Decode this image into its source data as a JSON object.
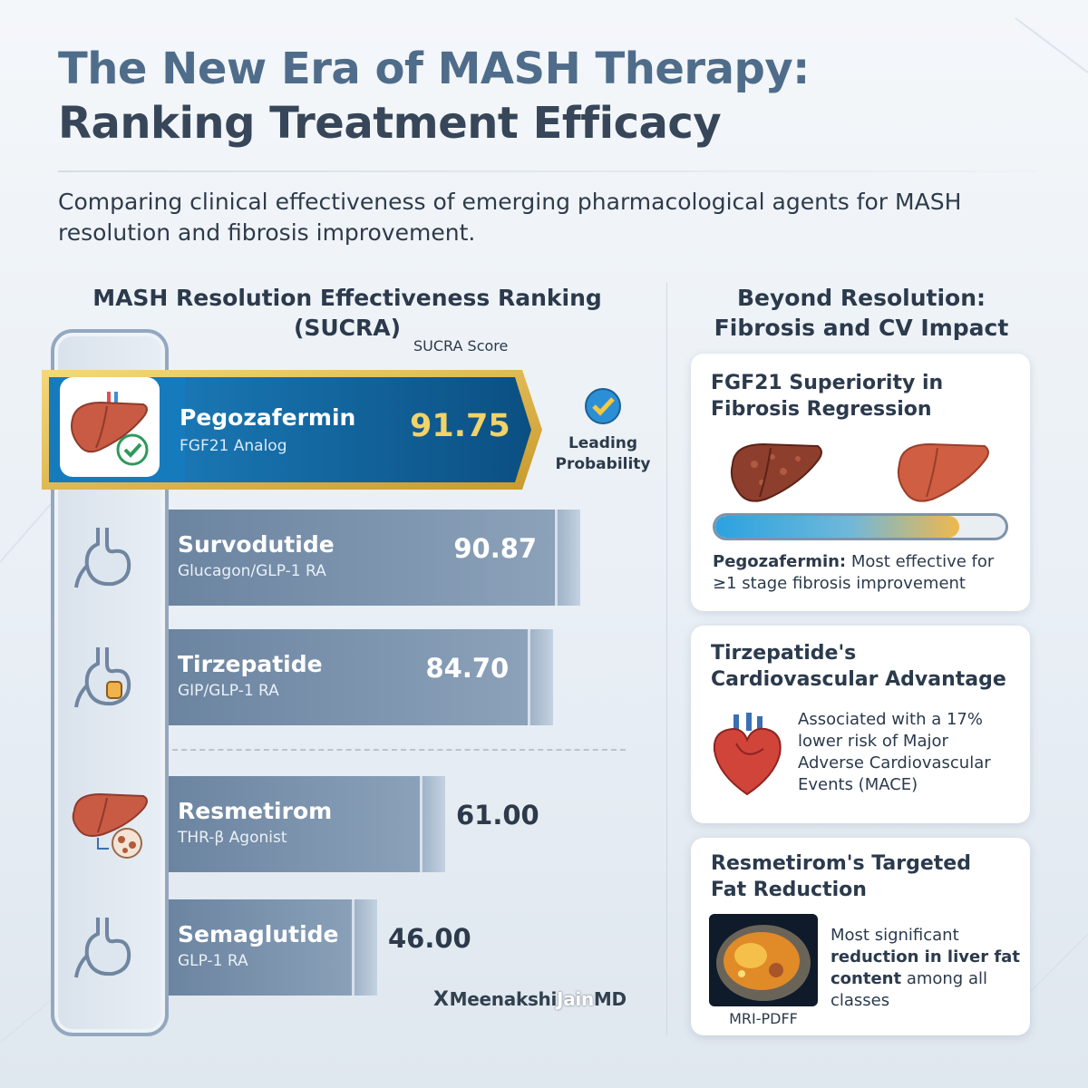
{
  "title_line1": "The New Era of MASH Therapy:",
  "title_line2": "Ranking Treatment Efficacy",
  "subtitle": "Comparing clinical effectiveness of emerging pharmacological agents for MASH resolution and fibrosis improvement.",
  "left_heading": "MASH Resolution Effectiveness Ranking (SUCRA)",
  "score_heading": "SUCRA Score",
  "leading_label": "Leading Probability",
  "right_heading": "Beyond Resolution: Fibrosis and CV Impact",
  "chart_data": {
    "type": "bar",
    "orientation": "horizontal",
    "categories": [
      "Pegozafermin",
      "Survodutide",
      "Tirzepatide",
      "Resmetirom",
      "Semaglutide"
    ],
    "classes": [
      "FGF21 Analog",
      "Glucagon/GLP-1 RA",
      "GIP/GLP-1 RA",
      "THR-β Agonist",
      "GLP-1 RA"
    ],
    "values": [
      91.75,
      90.87,
      84.7,
      61.0,
      46.0
    ],
    "value_labels": [
      "91.75",
      "90.87",
      "84.70",
      "61.00",
      "46.00"
    ],
    "icons": [
      "liver-check-icon",
      "stomach-icon",
      "stomach-pill-icon",
      "liver-cells-icon",
      "stomach-icon"
    ],
    "highlight": "Pegozafermin",
    "highlight_color": "#0d5f96",
    "bar_color": "#7890ab",
    "title": "MASH Resolution Effectiveness Ranking (SUCRA)",
    "xlabel": "SUCRA Score"
  },
  "cards": {
    "fgf21": {
      "title": "FGF21 Superiority in Fibrosis Regression",
      "desc_bold": "Pegozafermin:",
      "desc_rest": " Most effective for ≥1 stage fibrosis improvement",
      "progress": 0.84
    },
    "tirzepatide": {
      "title": "Tirzepatide's Cardiovascular Advantage",
      "desc": "Associated with a 17% lower risk of Major Adverse Cardiovascular Events (MACE)"
    },
    "resmetirom": {
      "title": "Resmetirom's Targeted Fat Reduction",
      "desc_pre": "Most significant ",
      "desc_bold": "reduction in liver fat content",
      "desc_post": " among all classes",
      "image_label": "MRI-PDFF"
    }
  },
  "watermark": {
    "prefix": "X",
    "name": "Meenakshi",
    "mid": "Jain",
    "suffix": "MD"
  }
}
